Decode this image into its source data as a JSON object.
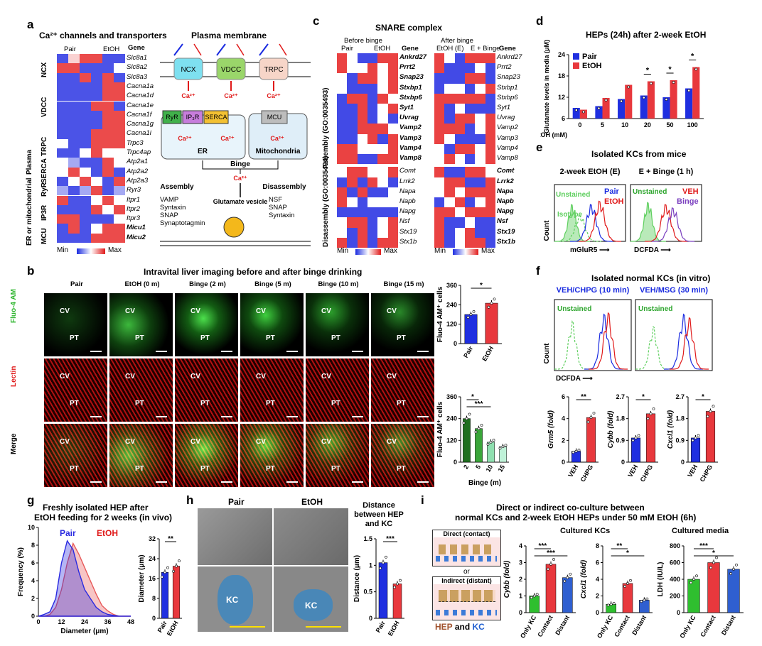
{
  "panels": {
    "a": "a",
    "b": "b",
    "c": "c",
    "d": "d",
    "e": "e",
    "f": "f",
    "g": "g",
    "h": "h",
    "i": "i"
  },
  "a": {
    "title": "Ca²⁺ channels and transporters",
    "col_pair": "Pair",
    "col_etoh": "EtOH",
    "gene_header": "Gene",
    "genes": [
      "Slc8a1",
      "Slc8a2",
      "Slc8a3",
      "Cacna1a",
      "Cacna1d",
      "Cacna1e",
      "Cacna1f",
      "Cacna1g",
      "Cacna1i",
      "Trpc3",
      "Trpc4ap",
      "Atp2a1",
      "Atp2a2",
      "Atp2a3",
      "Ryr3",
      "Itpr1",
      "Itpr2",
      "Itpr3",
      "Micu1",
      "Micu2"
    ],
    "bold_genes": [
      "Micu1",
      "Micu2"
    ],
    "groups": [
      "NCX",
      "VDCC",
      "TRPC",
      "SERCA",
      "RyR",
      "IP3R",
      "MCU"
    ],
    "outer_groups": [
      "Plasma",
      "ER or mitochondrial"
    ],
    "legend_min": "Min",
    "legend_max": "Max",
    "heatmap": [
      [
        0.1,
        0.6,
        0.9,
        0.9,
        0.1,
        0.1
      ],
      [
        0.9,
        0.9,
        0.1,
        0.1,
        0.1,
        0.5
      ],
      [
        0.1,
        0.1,
        0.9,
        0.1,
        0.9,
        0.1
      ],
      [
        0.1,
        0.1,
        0.1,
        0.1,
        0.9,
        0.9
      ],
      [
        0.1,
        0.1,
        0.1,
        0.1,
        0.9,
        0.9
      ],
      [
        0.1,
        0.1,
        0.1,
        0.9,
        0.9,
        0.1
      ],
      [
        0.1,
        0.1,
        0.1,
        0.1,
        0.9,
        0.9
      ],
      [
        0.1,
        0.1,
        0.1,
        0.1,
        0.9,
        0.9
      ],
      [
        0.1,
        0.1,
        0.1,
        0.9,
        0.9,
        0.9
      ],
      [
        0.5,
        0.1,
        0.1,
        0.9,
        0.9,
        0.9
      ],
      [
        0.1,
        0.1,
        0.5,
        0.9,
        0.5,
        0.5
      ],
      [
        0.5,
        0.3,
        0.1,
        0.1,
        0.9,
        0.5
      ],
      [
        0.5,
        0.9,
        0.5,
        0.1,
        0.9,
        0.1
      ],
      [
        0.1,
        0.5,
        0.9,
        0.5,
        0.1,
        0.9
      ],
      [
        0.3,
        0.1,
        0.3,
        0.9,
        0.1,
        0.3
      ],
      [
        0.9,
        0.1,
        0.1,
        0.5,
        0.9,
        0.5
      ],
      [
        0.1,
        0.1,
        0.1,
        0.9,
        0.5,
        0.9
      ],
      [
        0.9,
        0.9,
        0.1,
        0.1,
        0.1,
        0.5
      ],
      [
        0.1,
        0.9,
        0.1,
        0.5,
        0.9,
        0.9
      ],
      [
        0.1,
        0.1,
        0.1,
        0.9,
        0.9,
        0.9
      ]
    ],
    "diagram": {
      "membrane": "Plasma membrane",
      "ncx": "NCX",
      "vdcc": "VDCC",
      "trpc": "TRPC",
      "ryr": "RyR",
      "ip3r": "IP₃R",
      "serca": "SERCA",
      "mcu": "MCU",
      "er": "ER",
      "mito": "Mitochondria",
      "ca": "Ca²⁺",
      "binge": "Binge",
      "assembly": "Assembly",
      "assembly_items": [
        "VAMP",
        "Syntaxin",
        "SNAP",
        "Synaptotagmin"
      ],
      "disassembly": "Disassembly",
      "disassembly_items": [
        "NSF",
        "SNAP",
        "Syntaxin"
      ],
      "vesicle": "Glutamate vesicle"
    }
  },
  "c": {
    "title": "SNARE complex",
    "before": "Before binge",
    "after": "After binge",
    "col_pair": "Pair",
    "col_etoh": "EtOH",
    "col_e": "EtOH (E)",
    "col_eb": "E + Binge",
    "gene_header": "Gene",
    "genes": [
      "Ankrd27",
      "Prrt2",
      "Snap23",
      "Stxbp1",
      "Stxbp6",
      "Syt1",
      "Uvrag",
      "Vamp2",
      "Vamp3",
      "Vamp4",
      "Vamp8",
      "Comt",
      "Lrrk2",
      "Napa",
      "Napb",
      "Napg",
      "Nsf",
      "Stx19",
      "Stx1b"
    ],
    "bold_before": [
      "Ankrd27",
      "Prrt2",
      "Snap23",
      "Stxbp1",
      "Stxbp6",
      "Syt1",
      "Uvrag",
      "Vamp2",
      "Vamp3",
      "Vamp4",
      "Vamp8"
    ],
    "bold_after": [
      "Comt",
      "Lrrk2",
      "Napa",
      "Napb",
      "Napg",
      "Nsf",
      "Stx19",
      "Stx1b"
    ],
    "assembly_label": "Assembly (GO:0035493)",
    "disassembly_label": "Disassembly (GO:0035494)",
    "legend_min": "Min",
    "legend_max": "Max"
  },
  "d": {
    "title": "HEPs (24h) after 2-week EtOH",
    "ylabel": "Glutamate levels in media (μM)",
    "xlabel": "EtOH (mM)",
    "legend": [
      "Pair",
      "EtOH"
    ],
    "sig": [
      "*",
      "*",
      "*"
    ]
  },
  "e": {
    "title": "Isolated KCs from mice",
    "left_title": "2-week EtOH (E)",
    "right_title": "E + Binge (1 h)",
    "left_legend": [
      "Unstained",
      "Isotype",
      "Pair",
      "EtOH"
    ],
    "right_legend": [
      "Unstained",
      "VEH",
      "Binge"
    ],
    "ylabel": "Count",
    "left_xlabel": "mGluR5",
    "right_xlabel": "DCFDA"
  },
  "f": {
    "title": "Isolated normal KCs (in vitro)",
    "left_title": "VEH/CHPG (10 min)",
    "right_title": "VEH/MSG (30 min)",
    "unstained": "Unstained",
    "ylabel": "Count",
    "xlabel": "DCFDA",
    "bars": [
      "Grm5 (fold)",
      "Cybb (fold)",
      "Cxcl1 (fold)"
    ],
    "cats": [
      "VEH",
      "CHPG"
    ],
    "sig": [
      "**",
      "*",
      "*"
    ]
  },
  "b": {
    "title": "Intravital liver imaging before and after binge drinking",
    "columns": [
      "Pair",
      "EtOH (0 m)",
      "Binge (2 m)",
      "Binge (5 m)",
      "Binge (10 m)",
      "Binge (15 m)"
    ],
    "rows": [
      "Fluo-4 AM",
      "Lectin",
      "Merge"
    ],
    "cv": "CV",
    "pt": "PT",
    "top_ylabel": "Fluo-4 AM⁺ cells",
    "bot_ylabel": "Fluo-4 AM⁺ cells",
    "top_cats": [
      "Pair",
      "EtOH"
    ],
    "bot_cats": [
      "2",
      "5",
      "10",
      "15"
    ],
    "bot_xlabel": "Binge (m)",
    "sig_top": "*",
    "sig_bot": [
      "*",
      "***"
    ]
  },
  "g": {
    "title_line1": "Freshly isolated HEP after",
    "title_line2": "EtOH feeding for 2 weeks (in vivo)",
    "legend": [
      "Pair",
      "EtOH"
    ],
    "ylabel": "Frequency (%)",
    "xlabel": "Diameter (μm)",
    "bar_ylabel": "Diameter (μm)",
    "cats": [
      "Pair",
      "EtOH"
    ],
    "sig": "**"
  },
  "h": {
    "col_pair": "Pair",
    "col_etoh": "EtOH",
    "kc": "KC",
    "dist_title": "Distance between HEP and KC",
    "ylabel": "Distance (μm)",
    "cats": [
      "Pair",
      "EtOH"
    ],
    "sig": "***"
  },
  "i": {
    "title_line1": "Direct or indirect co-culture between",
    "title_line2": "normal KCs and 2-week EtOH HEPs under 50 mM EtOH (6h)",
    "direct": "Direct (contact)",
    "or": "or",
    "indirect": "Indirect (distant)",
    "hep": "HEP",
    "and": "and",
    "kc": "KC",
    "cultured_kcs": "Cultured KCs",
    "cultured_media": "Cultured media",
    "bars": [
      "Cybb (fold)",
      "Cxcl1 (fold)",
      "LDH (IU/L)"
    ],
    "cats": [
      "Only KC",
      "Contact",
      "Distant"
    ],
    "sig1": [
      "***",
      "***"
    ],
    "sig2": [
      "**",
      "*"
    ],
    "sig3": [
      "***",
      "*"
    ]
  },
  "chart_data": [
    {
      "panel": "d",
      "type": "bar",
      "title": "HEPs (24h) after 2-week EtOH",
      "xlabel": "EtOH (mM)",
      "ylabel": "Glutamate levels in media (μM)",
      "categories": [
        "0",
        "5",
        "10",
        "20",
        "50",
        "100"
      ],
      "series": [
        {
          "name": "Pair",
          "values": [
            9.0,
            9.5,
            11.5,
            12.5,
            12.0,
            14.5
          ],
          "color": "#1f2fe0"
        },
        {
          "name": "EtOH",
          "values": [
            8.5,
            11.8,
            15.5,
            16.5,
            16.8,
            20.5
          ],
          "color": "#e8383d"
        }
      ],
      "ylim": [
        6,
        24
      ],
      "yticks": [
        6,
        12,
        18,
        24
      ]
    },
    {
      "panel": "b-top",
      "type": "bar",
      "ylabel": "Fluo-4 AM⁺ cells",
      "categories": [
        "Pair",
        "EtOH"
      ],
      "values": [
        180,
        250
      ],
      "ylim": [
        0,
        360
      ],
      "yticks": [
        0,
        120,
        240,
        360
      ]
    },
    {
      "panel": "b-bottom",
      "type": "bar",
      "ylabel": "Fluo-4 AM⁺ cells",
      "xlabel": "Binge (m)",
      "categories": [
        "2",
        "5",
        "10",
        "15"
      ],
      "values": [
        240,
        185,
        110,
        85
      ],
      "ylim": [
        0,
        360
      ],
      "yticks": [
        0,
        120,
        240,
        360
      ]
    },
    {
      "panel": "f-1",
      "type": "bar",
      "ylabel": "Grm5 (fold)",
      "categories": [
        "VEH",
        "CHPG"
      ],
      "values": [
        1.0,
        4.1
      ],
      "ylim": [
        0,
        6
      ],
      "yticks": [
        0,
        2,
        4,
        6
      ]
    },
    {
      "panel": "f-2",
      "type": "bar",
      "ylabel": "Cybb (fold)",
      "categories": [
        "VEH",
        "CHPG"
      ],
      "values": [
        1.0,
        2.0
      ],
      "ylim": [
        0,
        2.7
      ],
      "yticks": [
        0,
        0.9,
        1.8,
        2.7
      ]
    },
    {
      "panel": "f-3",
      "type": "bar",
      "ylabel": "Cxcl1 (fold)",
      "categories": [
        "VEH",
        "CHPG"
      ],
      "values": [
        1.0,
        2.1
      ],
      "ylim": [
        0,
        2.7
      ],
      "yticks": [
        0,
        0.9,
        1.8,
        2.7
      ]
    },
    {
      "panel": "g-hist",
      "type": "area",
      "xlabel": "Diameter (μm)",
      "ylabel": "Frequency (%)",
      "x": [
        0,
        3,
        6,
        9,
        12,
        15,
        18,
        21,
        24,
        27,
        30,
        33,
        36,
        39,
        42,
        45,
        48
      ],
      "series": [
        {
          "name": "Pair",
          "values": [
            0,
            0.2,
            0.5,
            2.0,
            6.0,
            8.5,
            7.5,
            5.0,
            3.0,
            2.0,
            1.0,
            0.5,
            0.2,
            0.1,
            0,
            0,
            0
          ],
          "color": "#2a2ae0"
        },
        {
          "name": "EtOH",
          "values": [
            0,
            0,
            0.2,
            1.0,
            3.0,
            6.0,
            8.2,
            7.0,
            5.5,
            4.0,
            2.5,
            1.2,
            0.6,
            0.2,
            0,
            0,
            0
          ],
          "color": "#e85a5a"
        }
      ],
      "ylim": [
        0,
        10
      ],
      "yticks": [
        0,
        2,
        4,
        6,
        8,
        10
      ],
      "xticks": [
        0,
        12,
        24,
        36,
        48
      ]
    },
    {
      "panel": "g-bar",
      "type": "bar",
      "ylabel": "Diameter (μm)",
      "categories": [
        "Pair",
        "EtOH"
      ],
      "values": [
        18.5,
        21.0
      ],
      "ylim": [
        0,
        32
      ],
      "yticks": [
        0,
        8,
        16,
        24,
        32
      ]
    },
    {
      "panel": "h-bar",
      "type": "bar",
      "ylabel": "Distance (μm)",
      "categories": [
        "Pair",
        "EtOH"
      ],
      "values": [
        1.05,
        0.65
      ],
      "ylim": [
        0,
        1.5
      ],
      "yticks": [
        0,
        0.5,
        1.0,
        1.5
      ]
    },
    {
      "panel": "i-1",
      "type": "bar",
      "ylabel": "Cybb (fold)",
      "categories": [
        "Only KC",
        "Contact",
        "Distant"
      ],
      "values": [
        1.0,
        2.9,
        2.1
      ],
      "ylim": [
        0,
        4
      ],
      "yticks": [
        0,
        1,
        2,
        3,
        4
      ]
    },
    {
      "panel": "i-2",
      "type": "bar",
      "ylabel": "Cxcl1 (fold)",
      "categories": [
        "Only KC",
        "Contact",
        "Distant"
      ],
      "values": [
        1.0,
        3.5,
        1.5
      ],
      "ylim": [
        0,
        8
      ],
      "yticks": [
        0,
        2,
        4,
        6,
        8
      ]
    },
    {
      "panel": "i-3",
      "type": "bar",
      "ylabel": "LDH (IU/L)",
      "categories": [
        "Only KC",
        "Contact",
        "Distant"
      ],
      "values": [
        400,
        600,
        520
      ],
      "ylim": [
        0,
        800
      ],
      "yticks": [
        0,
        200,
        400,
        600,
        800
      ]
    }
  ]
}
